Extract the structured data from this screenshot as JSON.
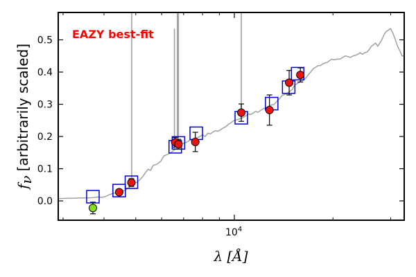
{
  "chart_data": {
    "type": "scatter",
    "x_scale": "log",
    "xlim": [
      2900,
      33000
    ],
    "ylim": [
      -0.06,
      0.585
    ],
    "xlabel": "λ [Å]",
    "ylabel_symbol": "f",
    "ylabel_subscript": "ν",
    "ylabel_text": "[arbitrarily scaled]",
    "x_ticks": [
      {
        "value": 10000,
        "base": "10",
        "exp": "4"
      }
    ],
    "y_ticks": [
      0.0,
      0.1,
      0.2,
      0.3,
      0.4,
      0.5
    ],
    "annotation": {
      "text": "EAZY best-fit",
      "color": "#ff0000"
    },
    "colors": {
      "template": "#a0a0a0",
      "model_box": "#0000dd",
      "observed": "#ee1111",
      "outlier": "#88dd22",
      "errorbar": "#000000"
    },
    "series": [
      {
        "role": "template",
        "x": [
          2900,
          3050,
          3200,
          3350,
          3500,
          3700,
          3850,
          3950,
          4050,
          4150,
          4250,
          4350,
          4450,
          4550,
          4650,
          4750,
          4850,
          4900,
          4950,
          5050,
          5150,
          5250,
          5350,
          5450,
          5550,
          5650,
          5800,
          5950,
          6100,
          6250,
          6400,
          6550,
          6700,
          6850,
          6950,
          7050,
          7150,
          7250,
          7400,
          7550,
          7700,
          7850,
          8000,
          8150,
          8300,
          8450,
          8600,
          8750,
          8900,
          9050,
          9200,
          9400,
          9600,
          9800,
          10000,
          10200,
          10400,
          10600,
          10750,
          10900,
          11050,
          11200,
          11400,
          11600,
          11800,
          12000,
          12200,
          12400,
          12600,
          12800,
          13000,
          13250,
          13500,
          13750,
          14000,
          14250,
          14500,
          14750,
          15000,
          15300,
          15600,
          15900,
          16200,
          16500,
          16800,
          17100,
          17400,
          17700,
          18000,
          18300,
          18600,
          18900,
          19200,
          19500,
          19800,
          20200,
          20600,
          21000,
          21400,
          21800,
          22200,
          22600,
          23000,
          23400,
          23800,
          24200,
          24600,
          25000,
          25400,
          25800,
          26200,
          26600,
          27000,
          27400,
          27800,
          28200,
          28600,
          29000,
          29500,
          30000,
          30500,
          31000,
          31500,
          32000,
          32500,
          33000
        ],
        "y": [
          0.007,
          0.008,
          0.008,
          0.009,
          0.009,
          0.01,
          0.012,
          0.011,
          0.014,
          0.019,
          0.023,
          0.025,
          0.026,
          0.03,
          0.034,
          0.04,
          0.048,
          0.052,
          0.055,
          0.058,
          0.066,
          0.075,
          0.088,
          0.098,
          0.095,
          0.11,
          0.114,
          0.122,
          0.14,
          0.144,
          0.15,
          0.158,
          0.165,
          0.174,
          0.178,
          0.18,
          0.182,
          0.186,
          0.19,
          0.194,
          0.196,
          0.2,
          0.205,
          0.2,
          0.21,
          0.208,
          0.214,
          0.218,
          0.216,
          0.22,
          0.225,
          0.23,
          0.238,
          0.244,
          0.25,
          0.252,
          0.255,
          0.258,
          0.262,
          0.265,
          0.27,
          0.268,
          0.272,
          0.278,
          0.275,
          0.28,
          0.285,
          0.288,
          0.29,
          0.295,
          0.298,
          0.3,
          0.31,
          0.318,
          0.328,
          0.33,
          0.335,
          0.34,
          0.345,
          0.36,
          0.365,
          0.37,
          0.375,
          0.38,
          0.392,
          0.4,
          0.41,
          0.415,
          0.42,
          0.42,
          0.425,
          0.428,
          0.43,
          0.435,
          0.44,
          0.438,
          0.44,
          0.44,
          0.445,
          0.45,
          0.448,
          0.445,
          0.45,
          0.452,
          0.455,
          0.46,
          0.455,
          0.46,
          0.462,
          0.47,
          0.48,
          0.485,
          0.49,
          0.48,
          0.49,
          0.5,
          0.515,
          0.525,
          0.53,
          0.535,
          0.52,
          0.5,
          0.48,
          0.466,
          0.45,
          0.45
        ]
      },
      {
        "role": "emission_lines",
        "x": [
          4860,
          6563,
          6700,
          6750,
          10500
        ],
        "peak": [
          0.585,
          0.535,
          0.585,
          0.585,
          0.585
        ]
      },
      {
        "role": "model_boxes",
        "x": [
          3700,
          4450,
          4850,
          6600,
          6750,
          7650,
          10500,
          13000,
          14650,
          15600
        ],
        "y": [
          0.013,
          0.032,
          0.058,
          0.168,
          0.18,
          0.21,
          0.258,
          0.302,
          0.353,
          0.395
        ]
      },
      {
        "role": "observed",
        "x": [
          3700,
          4450,
          4850,
          6600,
          6750,
          7600,
          10500,
          12800,
          14700,
          15900
        ],
        "y": [
          -0.022,
          0.027,
          0.057,
          0.182,
          0.176,
          0.183,
          0.274,
          0.282,
          0.367,
          0.391
        ],
        "err": [
          0.018,
          0.007,
          0.012,
          0.015,
          0.015,
          0.03,
          0.027,
          0.047,
          0.038,
          0.022
        ],
        "outlier_index": 0
      }
    ]
  }
}
